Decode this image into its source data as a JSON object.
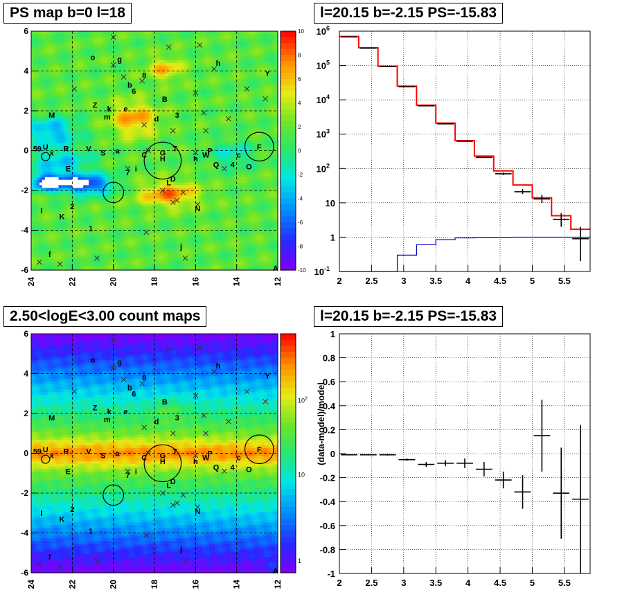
{
  "titles": {
    "tl": "PS map b=0 l=18",
    "tr": "l=20.15 b=-2.15 PS=-15.83",
    "bl": "2.50<logE<3.00 count maps",
    "br": "l=20.15 b=-2.15 PS=-15.83"
  },
  "chart_data": [
    {
      "type": "heatmap",
      "id": "ps_map",
      "title": "PS map b=0 l=18",
      "xlim": [
        24,
        12
      ],
      "ylim": [
        -6,
        6
      ],
      "xticks": [
        "24",
        "22",
        "20",
        "18",
        "16",
        "14",
        "12"
      ],
      "yticks": [
        "-6",
        "-4",
        "-2",
        "0",
        "2",
        "4",
        "6"
      ],
      "colorbar": {
        "min": -10,
        "max": 10,
        "ticks": [
          "10",
          "8",
          "6",
          "4",
          "2",
          "0",
          "-2",
          "-4",
          "-6",
          "-8",
          "-10"
        ]
      },
      "grid": true,
      "sources": [
        {
          "label": "o",
          "x": 21.0,
          "y": 4.7
        },
        {
          "label": "g",
          "x": 19.7,
          "y": 4.6
        },
        {
          "label": "h",
          "x": 14.9,
          "y": 4.4
        },
        {
          "label": "Y",
          "x": 12.5,
          "y": 3.9
        },
        {
          "label": "8",
          "x": 18.5,
          "y": 3.8
        },
        {
          "label": "b",
          "x": 19.2,
          "y": 3.3
        },
        {
          "label": "6",
          "x": 19.0,
          "y": 3.0
        },
        {
          "label": "B",
          "x": 17.5,
          "y": 2.6
        },
        {
          "label": "Z",
          "x": 20.9,
          "y": 2.3
        },
        {
          "label": "k",
          "x": 20.2,
          "y": 2.1
        },
        {
          "label": "e",
          "x": 19.4,
          "y": 2.1
        },
        {
          "label": "3",
          "x": 16.9,
          "y": 1.8
        },
        {
          "label": "M",
          "x": 23.0,
          "y": 1.8
        },
        {
          "label": "m",
          "x": 20.3,
          "y": 1.7
        },
        {
          "label": "d",
          "x": 17.9,
          "y": 1.6
        },
        {
          "label": "F",
          "x": 12.9,
          "y": 0.2
        },
        {
          "label": "U",
          "x": 23.3,
          "y": 0.2
        },
        {
          "label": "R",
          "x": 22.3,
          "y": 0.1
        },
        {
          "label": "V",
          "x": 21.2,
          "y": 0.1
        },
        {
          "label": "S",
          "x": 20.5,
          "y": -0.1
        },
        {
          "label": "a",
          "x": 19.8,
          "y": -0.0
        },
        {
          "label": "C",
          "x": 18.5,
          "y": -0.2
        },
        {
          "label": "G",
          "x": 17.6,
          "y": -0.1
        },
        {
          "label": "H",
          "x": 17.6,
          "y": -0.4
        },
        {
          "label": "T",
          "x": 17.0,
          "y": 0.1
        },
        {
          "label": "W",
          "x": 15.5,
          "y": -0.2
        },
        {
          "label": "P",
          "x": 15.3,
          "y": 0.0
        },
        {
          "label": "h",
          "x": 16.0,
          "y": -0.4
        },
        {
          "label": "c",
          "x": 13.9,
          "y": -0.2
        },
        {
          "label": "Q",
          "x": 15.0,
          "y": -0.7
        },
        {
          "label": "4",
          "x": 14.2,
          "y": -0.7
        },
        {
          "label": "O",
          "x": 13.4,
          "y": -0.8
        },
        {
          "label": "E",
          "x": 22.2,
          "y": -0.9
        },
        {
          "label": "7",
          "x": 19.3,
          "y": -1.1
        },
        {
          "label": "i",
          "x": 18.9,
          "y": -0.9
        },
        {
          "label": "D",
          "x": 17.1,
          "y": -1.4
        },
        {
          "label": "L",
          "x": 17.3,
          "y": -1.6
        },
        {
          "label": "N",
          "x": 15.9,
          "y": -2.9
        },
        {
          "label": "2",
          "x": 22.0,
          "y": -2.8
        },
        {
          "label": "l",
          "x": 23.5,
          "y": -3.0
        },
        {
          "label": "K",
          "x": 22.5,
          "y": -3.3
        },
        {
          "label": "1",
          "x": 21.1,
          "y": -3.9
        },
        {
          "label": "j",
          "x": 16.7,
          "y": -4.8
        },
        {
          "label": "f",
          "x": 23.1,
          "y": -5.2
        },
        {
          "label": "A",
          "x": 12.1,
          "y": -5.9
        },
        {
          "label": "5",
          "x": 23.8,
          "y": 0.1
        },
        {
          "label": "9",
          "x": 23.6,
          "y": 0.1
        },
        {
          "label": "x",
          "x": 23.0,
          "y": -0.1
        }
      ],
      "circles": [
        {
          "x": 17.6,
          "y": -0.5,
          "r": 0.9
        },
        {
          "x": 12.9,
          "y": 0.2,
          "r": 0.7
        },
        {
          "x": 20.0,
          "y": -2.1,
          "r": 0.5
        },
        {
          "x": 23.3,
          "y": -0.3,
          "r": 0.2
        }
      ]
    },
    {
      "type": "line",
      "id": "spectrum",
      "title": "l=20.15 b=-2.15 PS=-15.83",
      "xlim": [
        2,
        5.9
      ],
      "ylim": [
        0.1,
        1000000
      ],
      "yscale": "log",
      "xticks": [
        "2",
        "2.5",
        "3",
        "3.5",
        "4",
        "4.5",
        "5",
        "5.5"
      ],
      "yticks": [
        "10^-1",
        "1",
        "10",
        "10^2",
        "10^3",
        "10^4",
        "10^5",
        "10^6"
      ],
      "grid": true,
      "bin_edges": [
        2.0,
        2.3,
        2.6,
        2.9,
        3.2,
        3.5,
        3.8,
        4.1,
        4.4,
        4.7,
        5.0,
        5.3,
        5.6,
        5.9
      ],
      "series": [
        {
          "color": "#ff0000",
          "values": [
            700000,
            330000,
            95000,
            25000,
            7000,
            2100,
            650,
            230,
            85,
            33,
            14,
            4.2,
            1.7
          ]
        },
        {
          "color": "#000000",
          "values": [
            680000,
            320000,
            93000,
            24000,
            6700,
            2000,
            620,
            210,
            70,
            21,
            13,
            3.3,
            0.9
          ],
          "err_low": [
            680000,
            320000,
            93000,
            24000,
            6700,
            2000,
            620,
            210,
            64,
            18,
            10,
            2,
            0.2
          ],
          "err_high": [
            680000,
            320000,
            93000,
            24000,
            6700,
            2000,
            620,
            210,
            77,
            25,
            17,
            5,
            2
          ]
        },
        {
          "color": "#0000cc",
          "values": [
            0,
            0,
            0,
            0.3,
            0.6,
            0.85,
            0.95,
            0.98,
            0.99,
            1,
            1,
            1,
            1
          ]
        }
      ]
    },
    {
      "type": "heatmap",
      "id": "count_map",
      "title": "2.50<logE<3.00 count maps",
      "xlim": [
        24,
        12
      ],
      "ylim": [
        -6,
        6
      ],
      "xticks": [
        "24",
        "22",
        "20",
        "18",
        "16",
        "14",
        "12"
      ],
      "yticks": [
        "-6",
        "-4",
        "-2",
        "0",
        "2",
        "4",
        "6"
      ],
      "colorbar": {
        "scale": "log",
        "ticks": [
          "10^2",
          "10",
          "1"
        ]
      },
      "grid": true
    },
    {
      "type": "scatter",
      "id": "residuals",
      "title": "l=20.15 b=-2.15 PS=-15.83",
      "xlim": [
        2,
        5.9
      ],
      "ylim": [
        -1,
        1
      ],
      "ylabel": "(data-model)/model",
      "xticks": [
        "2",
        "2.5",
        "3",
        "3.5",
        "4",
        "4.5",
        "5",
        "5.5"
      ],
      "yticks": [
        "1",
        "0.8",
        "0.6",
        "0.4",
        "0.2",
        "0",
        "-0.2",
        "-0.4",
        "-0.6",
        "-0.8",
        "-1"
      ],
      "grid": true,
      "x": [
        2.15,
        2.45,
        2.75,
        3.05,
        3.35,
        3.65,
        3.95,
        4.25,
        4.55,
        4.85,
        5.15,
        5.45,
        5.75
      ],
      "y": [
        -0.01,
        -0.01,
        -0.01,
        -0.05,
        -0.09,
        -0.08,
        -0.08,
        -0.13,
        -0.22,
        -0.32,
        0.15,
        -0.33,
        -0.38
      ],
      "yerr": [
        0.005,
        0.005,
        0.006,
        0.01,
        0.02,
        0.025,
        0.04,
        0.06,
        0.07,
        0.14,
        0.3,
        0.38,
        0.62
      ]
    }
  ]
}
